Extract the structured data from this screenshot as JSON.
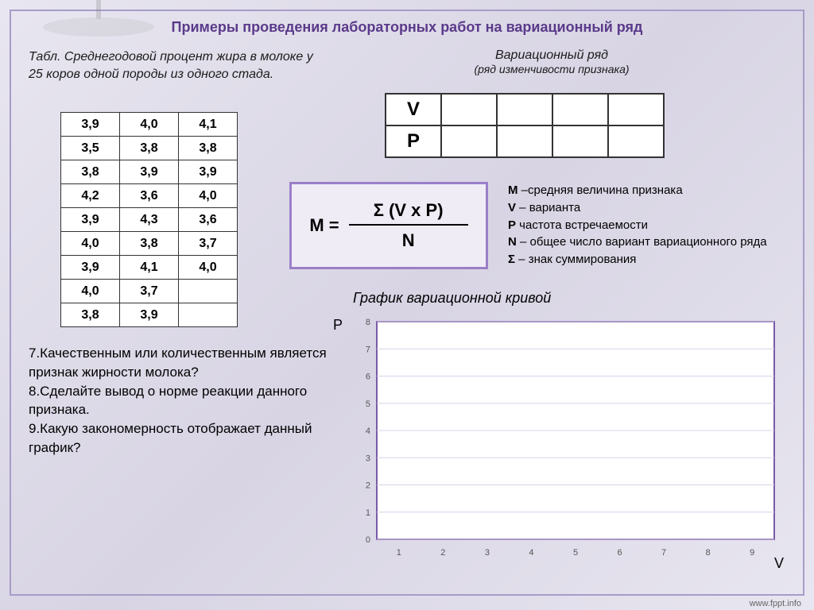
{
  "title": "Примеры проведения лабораторных работ на вариационный ряд",
  "caption_left": "Табл. Среднегодовой процент жира в молоке у 25 коров одной породы из одного стада.",
  "caption_right": {
    "main": "Вариационный ряд",
    "sub": "(ряд изменчивости признака)"
  },
  "data_rows": [
    [
      "3,9",
      "4,0",
      "4,1"
    ],
    [
      "3,5",
      "3,8",
      "3,8"
    ],
    [
      "3,8",
      "3,9",
      "3,9"
    ],
    [
      "4,2",
      "3,6",
      "4,0"
    ],
    [
      "3,9",
      "4,3",
      "3,6"
    ],
    [
      "4,0",
      "3,8",
      "3,7"
    ],
    [
      "3,9",
      "4,1",
      "4,0"
    ],
    [
      "4,0",
      "3,7",
      ""
    ],
    [
      "3,8",
      "3,9",
      ""
    ]
  ],
  "vp": {
    "row1": "V",
    "row2": "P",
    "blank_cols": 4
  },
  "formula": {
    "lhs": "M =",
    "num": "Σ (V x P)",
    "den": "N"
  },
  "legend": [
    "M –средняя величина признака",
    "V – варианта",
    "P частота встречаемости",
    "N – общее число вариант вариационного ряда",
    "Σ – знак суммирования"
  ],
  "chart": {
    "title": "График вариационной кривой",
    "y_axis_label": "P",
    "x_axis_label": "V",
    "y_ticks": [
      0,
      1,
      2,
      3,
      4,
      5,
      6,
      7,
      8
    ],
    "x_ticks": [
      1,
      2,
      3,
      4,
      5,
      6,
      7,
      8,
      9
    ],
    "plot_bg": "#ffffff",
    "plot_border": "#7a5aa8",
    "grid_color": "#d8d0e8",
    "tick_fontsize": 11
  },
  "questions": [
    "7.Качественным или количественным является признак жирности молока?",
    "8.Сделайте вывод о норме реакции данного признака.",
    "9.Какую закономерность отображает данный график?"
  ],
  "footer": "www.fppt.info",
  "colors": {
    "title_color": "#5a3a8a",
    "frame_border": "#a89cc8",
    "formula_border": "#9a7fc8",
    "formula_bg": "#f0ecf6"
  }
}
